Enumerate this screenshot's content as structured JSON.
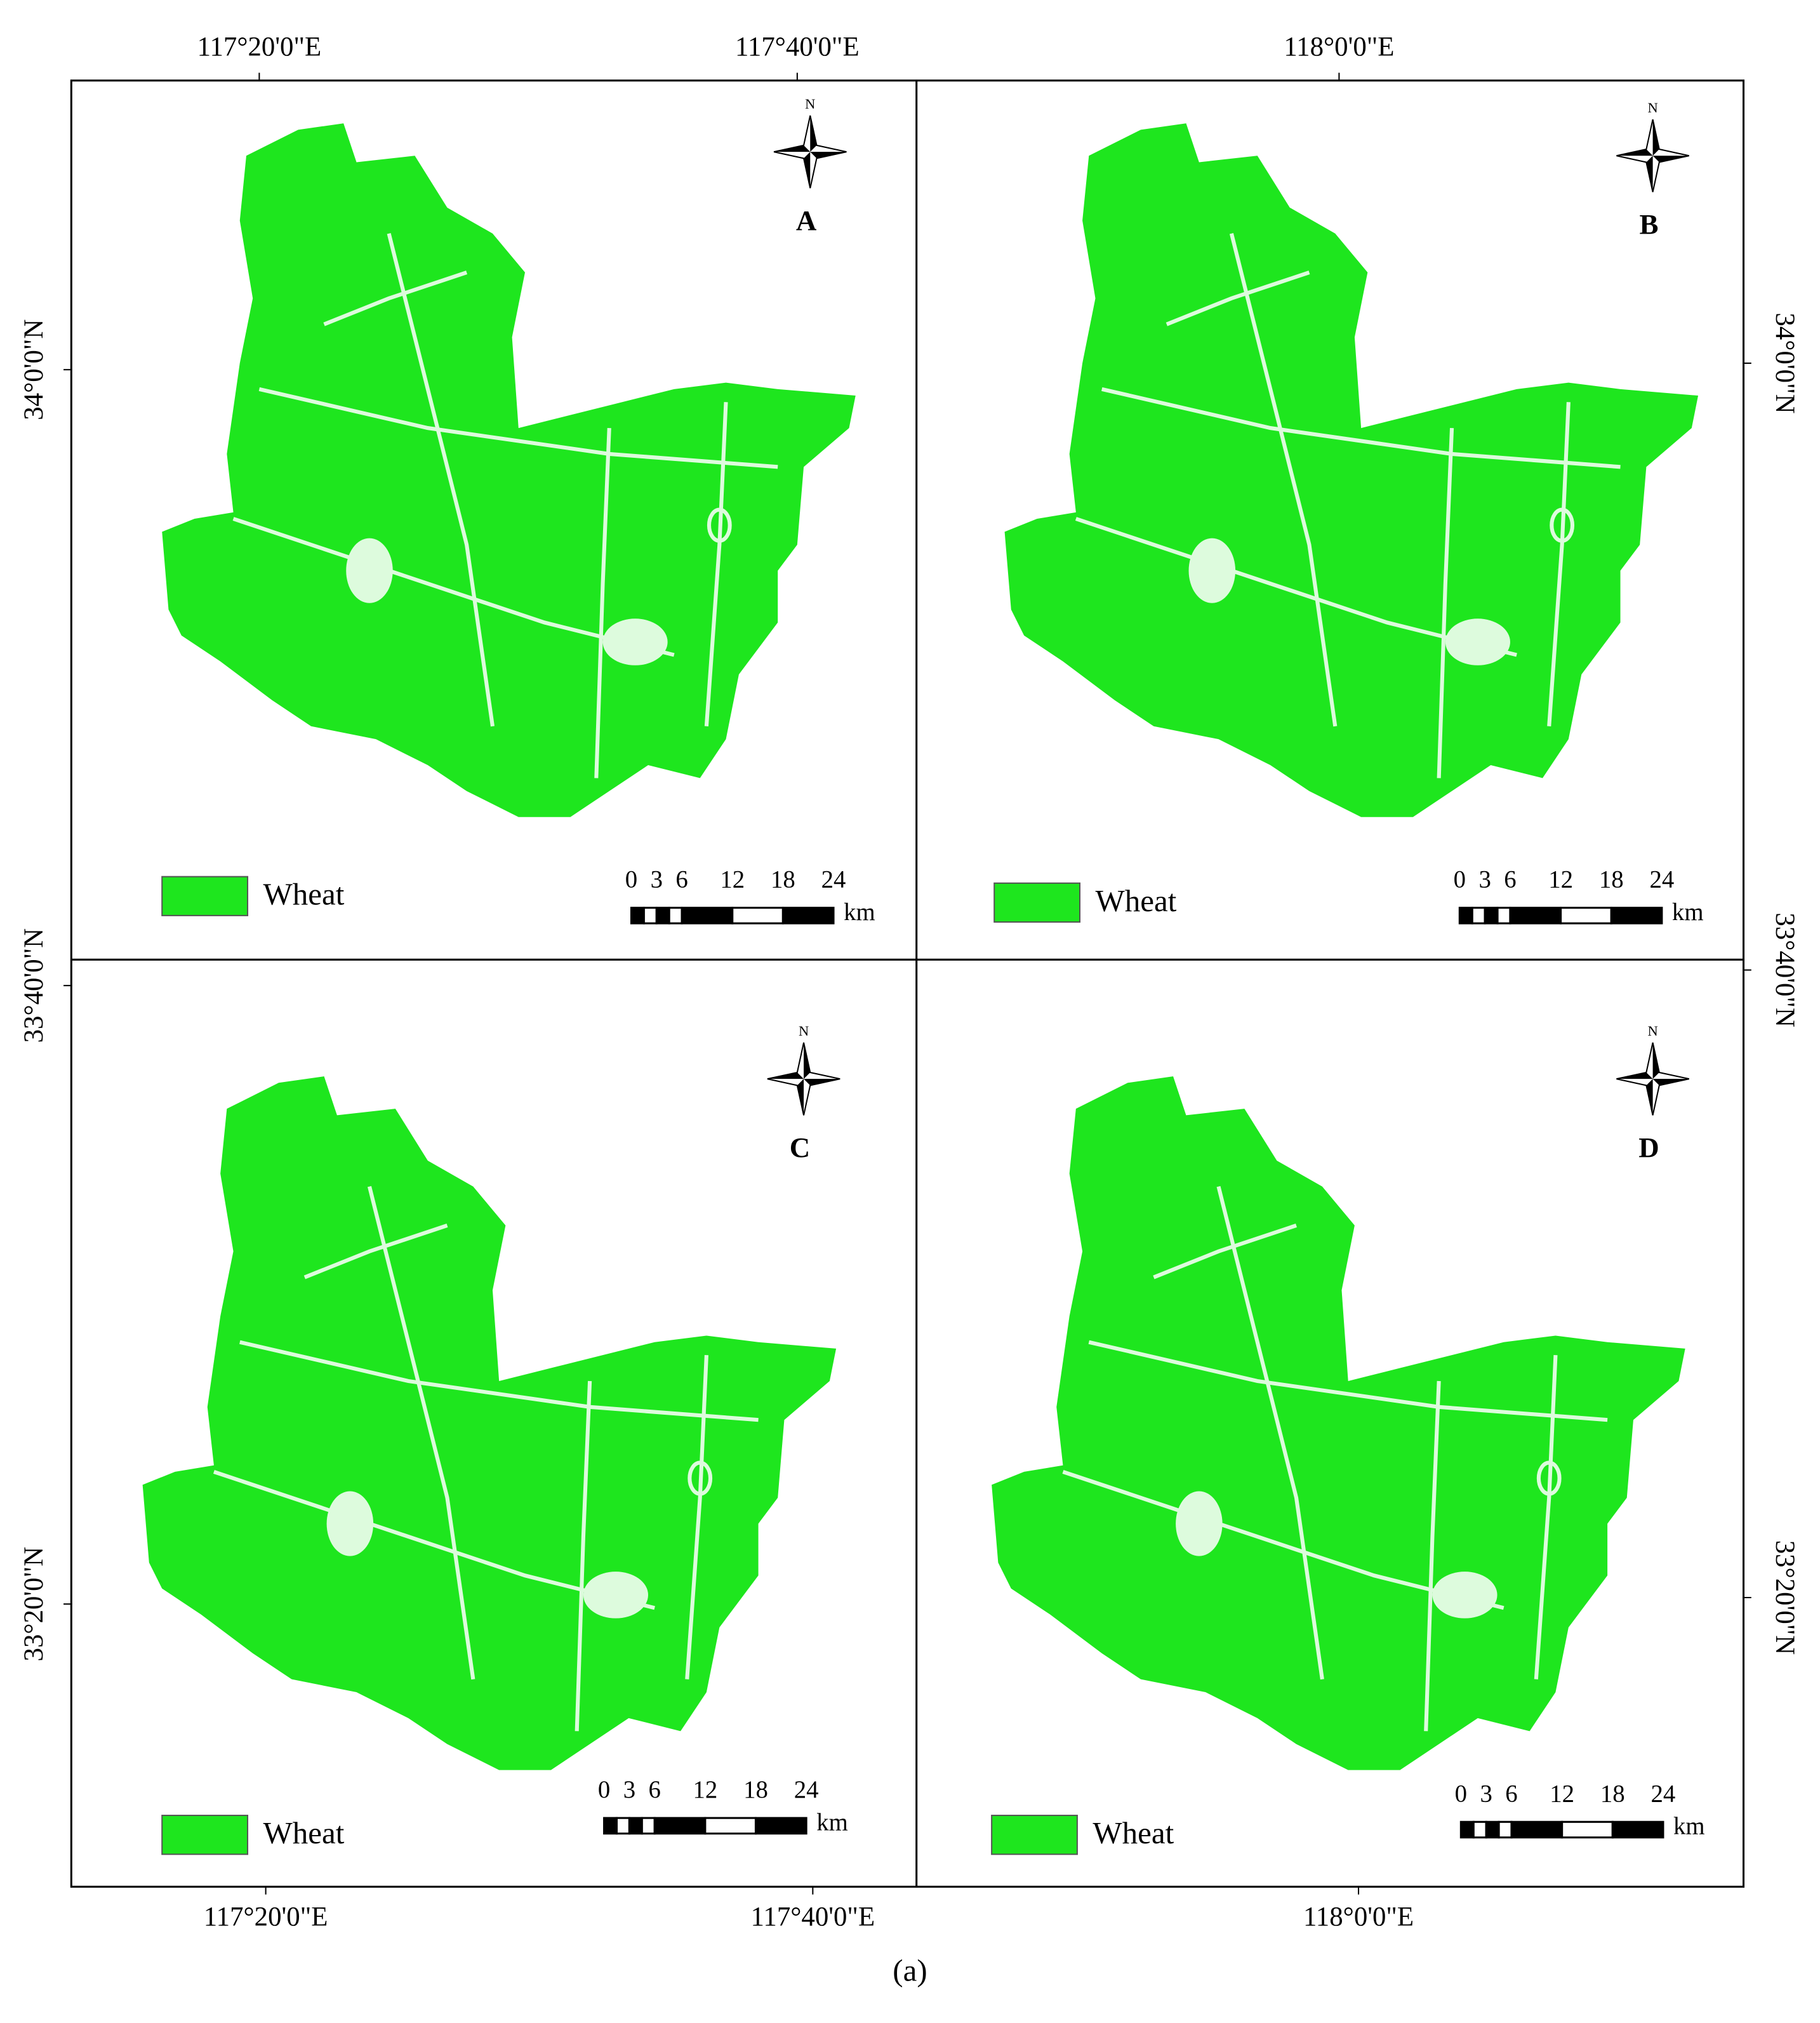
{
  "axes": {
    "top": [
      "117°20'0\"E",
      "117°40'0\"E",
      "118°0'0\"E"
    ],
    "bottom": [
      "117°20'0\"E",
      "117°40'0\"E",
      "118°0'0\"E"
    ],
    "left": [
      "34°0'0\"N",
      "33°40'0\"N",
      "33°20'0\"N"
    ],
    "right": [
      "34°0'0\"N",
      "33°40'0\"N",
      "33°20'0\"N"
    ]
  },
  "panels": [
    {
      "letter": "A",
      "north": "N",
      "legend": "Wheat",
      "scale": [
        "0",
        "3",
        "6",
        "12",
        "18",
        "24"
      ],
      "unit": "km"
    },
    {
      "letter": "B",
      "north": "N",
      "legend": "Wheat",
      "scale": [
        "0",
        "3",
        "6",
        "12",
        "18",
        "24"
      ],
      "unit": "km"
    },
    {
      "letter": "C",
      "north": "N",
      "legend": "Wheat",
      "scale": [
        "0",
        "3",
        "6",
        "12",
        "18",
        "24"
      ],
      "unit": "km"
    },
    {
      "letter": "D",
      "north": "N",
      "legend": "Wheat",
      "scale": [
        "0",
        "3",
        "6",
        "12",
        "18",
        "24"
      ],
      "unit": "km"
    }
  ],
  "caption": "(a)"
}
